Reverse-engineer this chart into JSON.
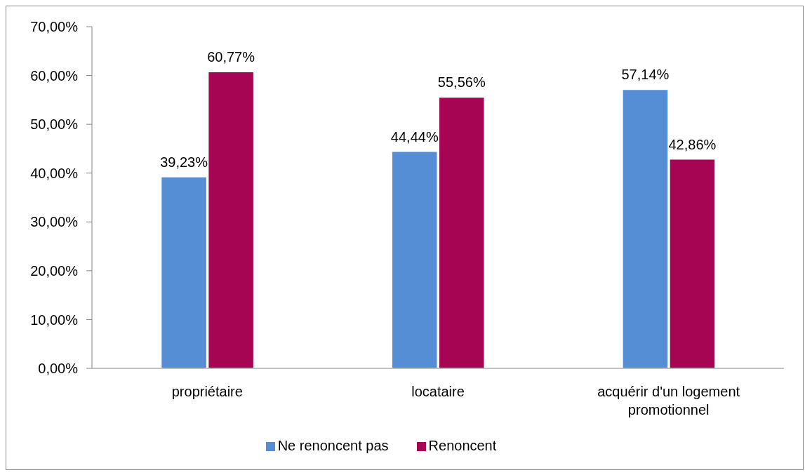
{
  "chart_data": {
    "type": "bar",
    "categories": [
      "propriétaire",
      "locataire",
      "acquérir d'un logement promotionnel"
    ],
    "series": [
      {
        "name": "Ne renoncent pas",
        "color": "#558ed5",
        "values": [
          39.23,
          44.44,
          57.14
        ],
        "value_labels": [
          "39,23%",
          "44,44%",
          "57,14%"
        ]
      },
      {
        "name": "Renoncent",
        "color": "#a50552",
        "values": [
          60.77,
          55.56,
          42.86
        ],
        "value_labels": [
          "60,77%",
          "55,56%",
          "42,86%"
        ]
      }
    ],
    "ylim": [
      0,
      70
    ],
    "yticks": [
      {
        "value": 0,
        "label": "0,00%"
      },
      {
        "value": 10,
        "label": "10,00%"
      },
      {
        "value": 20,
        "label": "20,00%"
      },
      {
        "value": 30,
        "label": "30,00%"
      },
      {
        "value": 40,
        "label": "40,00%"
      },
      {
        "value": 50,
        "label": "50,00%"
      },
      {
        "value": 60,
        "label": "60,00%"
      },
      {
        "value": 70,
        "label": "70,00%"
      }
    ],
    "legend": "bottom"
  }
}
